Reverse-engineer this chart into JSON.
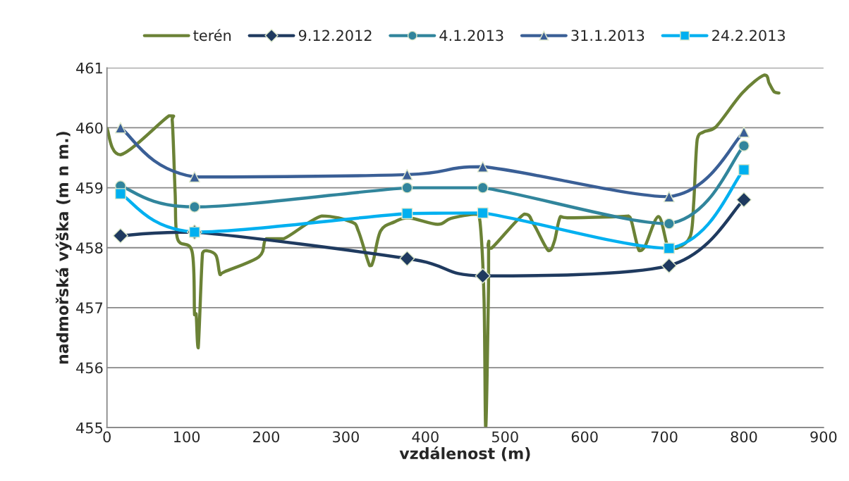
{
  "chart_data": {
    "type": "line",
    "xlabel": "vzdálenost (m)",
    "ylabel": "nadmořská výška (m n m.)",
    "xlim": [
      0,
      900
    ],
    "xticks": [
      0,
      100,
      200,
      300,
      400,
      500,
      600,
      700,
      800,
      900
    ],
    "ylim": [
      455,
      461
    ],
    "yticks": [
      455,
      456,
      457,
      458,
      459,
      460,
      461
    ],
    "grid": "y",
    "legend": "top",
    "series": [
      {
        "name": "terén",
        "color": "#6b8236",
        "marker": "none",
        "x": [
          0,
          17,
          78,
          82,
          85.6,
          88.6,
          107,
          110,
          112,
          114.6,
          120,
          125,
          137,
          142,
          148,
          191,
          200,
          222,
          270,
          307,
          316,
          330,
          334.6,
          343.7,
          361,
          378.9,
          415.5,
          432,
          463,
          468.6,
          473.6,
          475.7,
          479,
          479.6,
          482.8,
          523.9,
          536,
          554.5,
          562,
          569.6,
          582,
          645,
          654.6,
          659,
          668.4,
          676,
          692.7,
          705,
          715.7,
          732.6,
          737,
          741.4,
          749.4,
          764.5,
          798,
          825.6,
          831.8,
          838,
          844
        ],
        "values": [
          459.99,
          459.55,
          460.2,
          460.12,
          458.92,
          458.15,
          457.93,
          456.88,
          456.9,
          456.33,
          457.91,
          457.95,
          457.87,
          457.55,
          457.6,
          457.85,
          458.15,
          458.15,
          458.53,
          458.43,
          458.27,
          457.7,
          457.79,
          458.28,
          458.43,
          458.5,
          458.39,
          458.49,
          458.56,
          458.43,
          457.14,
          455.0,
          457.14,
          458.11,
          457.99,
          458.56,
          458.39,
          457.95,
          458.11,
          458.52,
          458.5,
          458.52,
          458.53,
          458.43,
          457.95,
          458.03,
          458.52,
          457.99,
          457.99,
          458.19,
          458.76,
          459.81,
          459.93,
          460.01,
          460.58,
          460.88,
          460.74,
          460.6,
          460.58
        ]
      },
      {
        "name": "9.12.2012",
        "color": "#1f3a5f",
        "marker": "diamond",
        "x": [
          17,
          110,
          377,
          472,
          706,
          800
        ],
        "values": [
          458.2,
          458.26,
          457.82,
          457.53,
          457.7,
          458.8
        ]
      },
      {
        "name": "4.1.2013",
        "color": "#31859c",
        "marker": "circle",
        "x": [
          17,
          110,
          377,
          472,
          706,
          800
        ],
        "values": [
          459.03,
          458.68,
          459.0,
          459.0,
          458.4,
          459.7
        ]
      },
      {
        "name": "31.1.2013",
        "color": "#3a5f96",
        "marker": "triangle",
        "x": [
          17,
          110,
          377,
          472,
          706,
          800
        ],
        "values": [
          460.0,
          459.18,
          459.22,
          459.35,
          458.85,
          459.93
        ]
      },
      {
        "name": "24.2.2013",
        "color": "#00b0f0",
        "marker": "square",
        "x": [
          17,
          110,
          377,
          472,
          706,
          800
        ],
        "values": [
          458.9,
          458.26,
          458.57,
          458.58,
          457.99,
          459.3
        ]
      }
    ]
  }
}
